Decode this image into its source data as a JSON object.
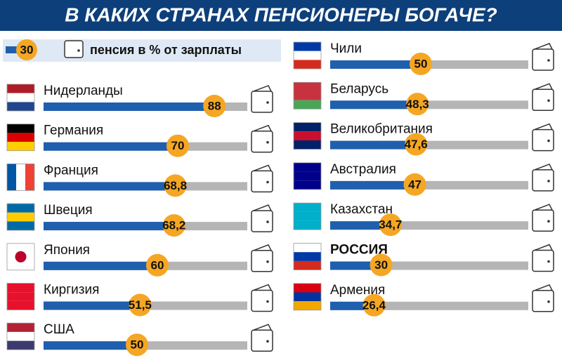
{
  "chart_data": {
    "type": "bar",
    "title": "В КАКИХ СТРАНАХ ПЕНСИОНЕРЫ БОГАЧЕ?",
    "legend": {
      "sample": 30,
      "label": "пенсия в % от зарплаты"
    },
    "categories": [
      "Нидерланды",
      "Германия",
      "Франция",
      "Швеция",
      "Япония",
      "Киргизия",
      "США",
      "Чили",
      "Беларусь",
      "Великобритания",
      "Австралия",
      "Казахстан",
      "РОССИЯ",
      "Армения"
    ],
    "values": [
      88,
      70,
      68.8,
      68.2,
      60,
      51.5,
      50,
      50,
      48.3,
      47.6,
      47,
      34.7,
      30,
      26.4
    ],
    "value_labels": [
      "88",
      "70",
      "68,8",
      "68,2",
      "60",
      "51,5",
      "50",
      "50",
      "48,3",
      "47,6",
      "47",
      "34,7",
      "30",
      "26,4"
    ],
    "highlight": "РОССИЯ",
    "color": "#1f5fae",
    "xlim": [
      0,
      100
    ]
  }
}
